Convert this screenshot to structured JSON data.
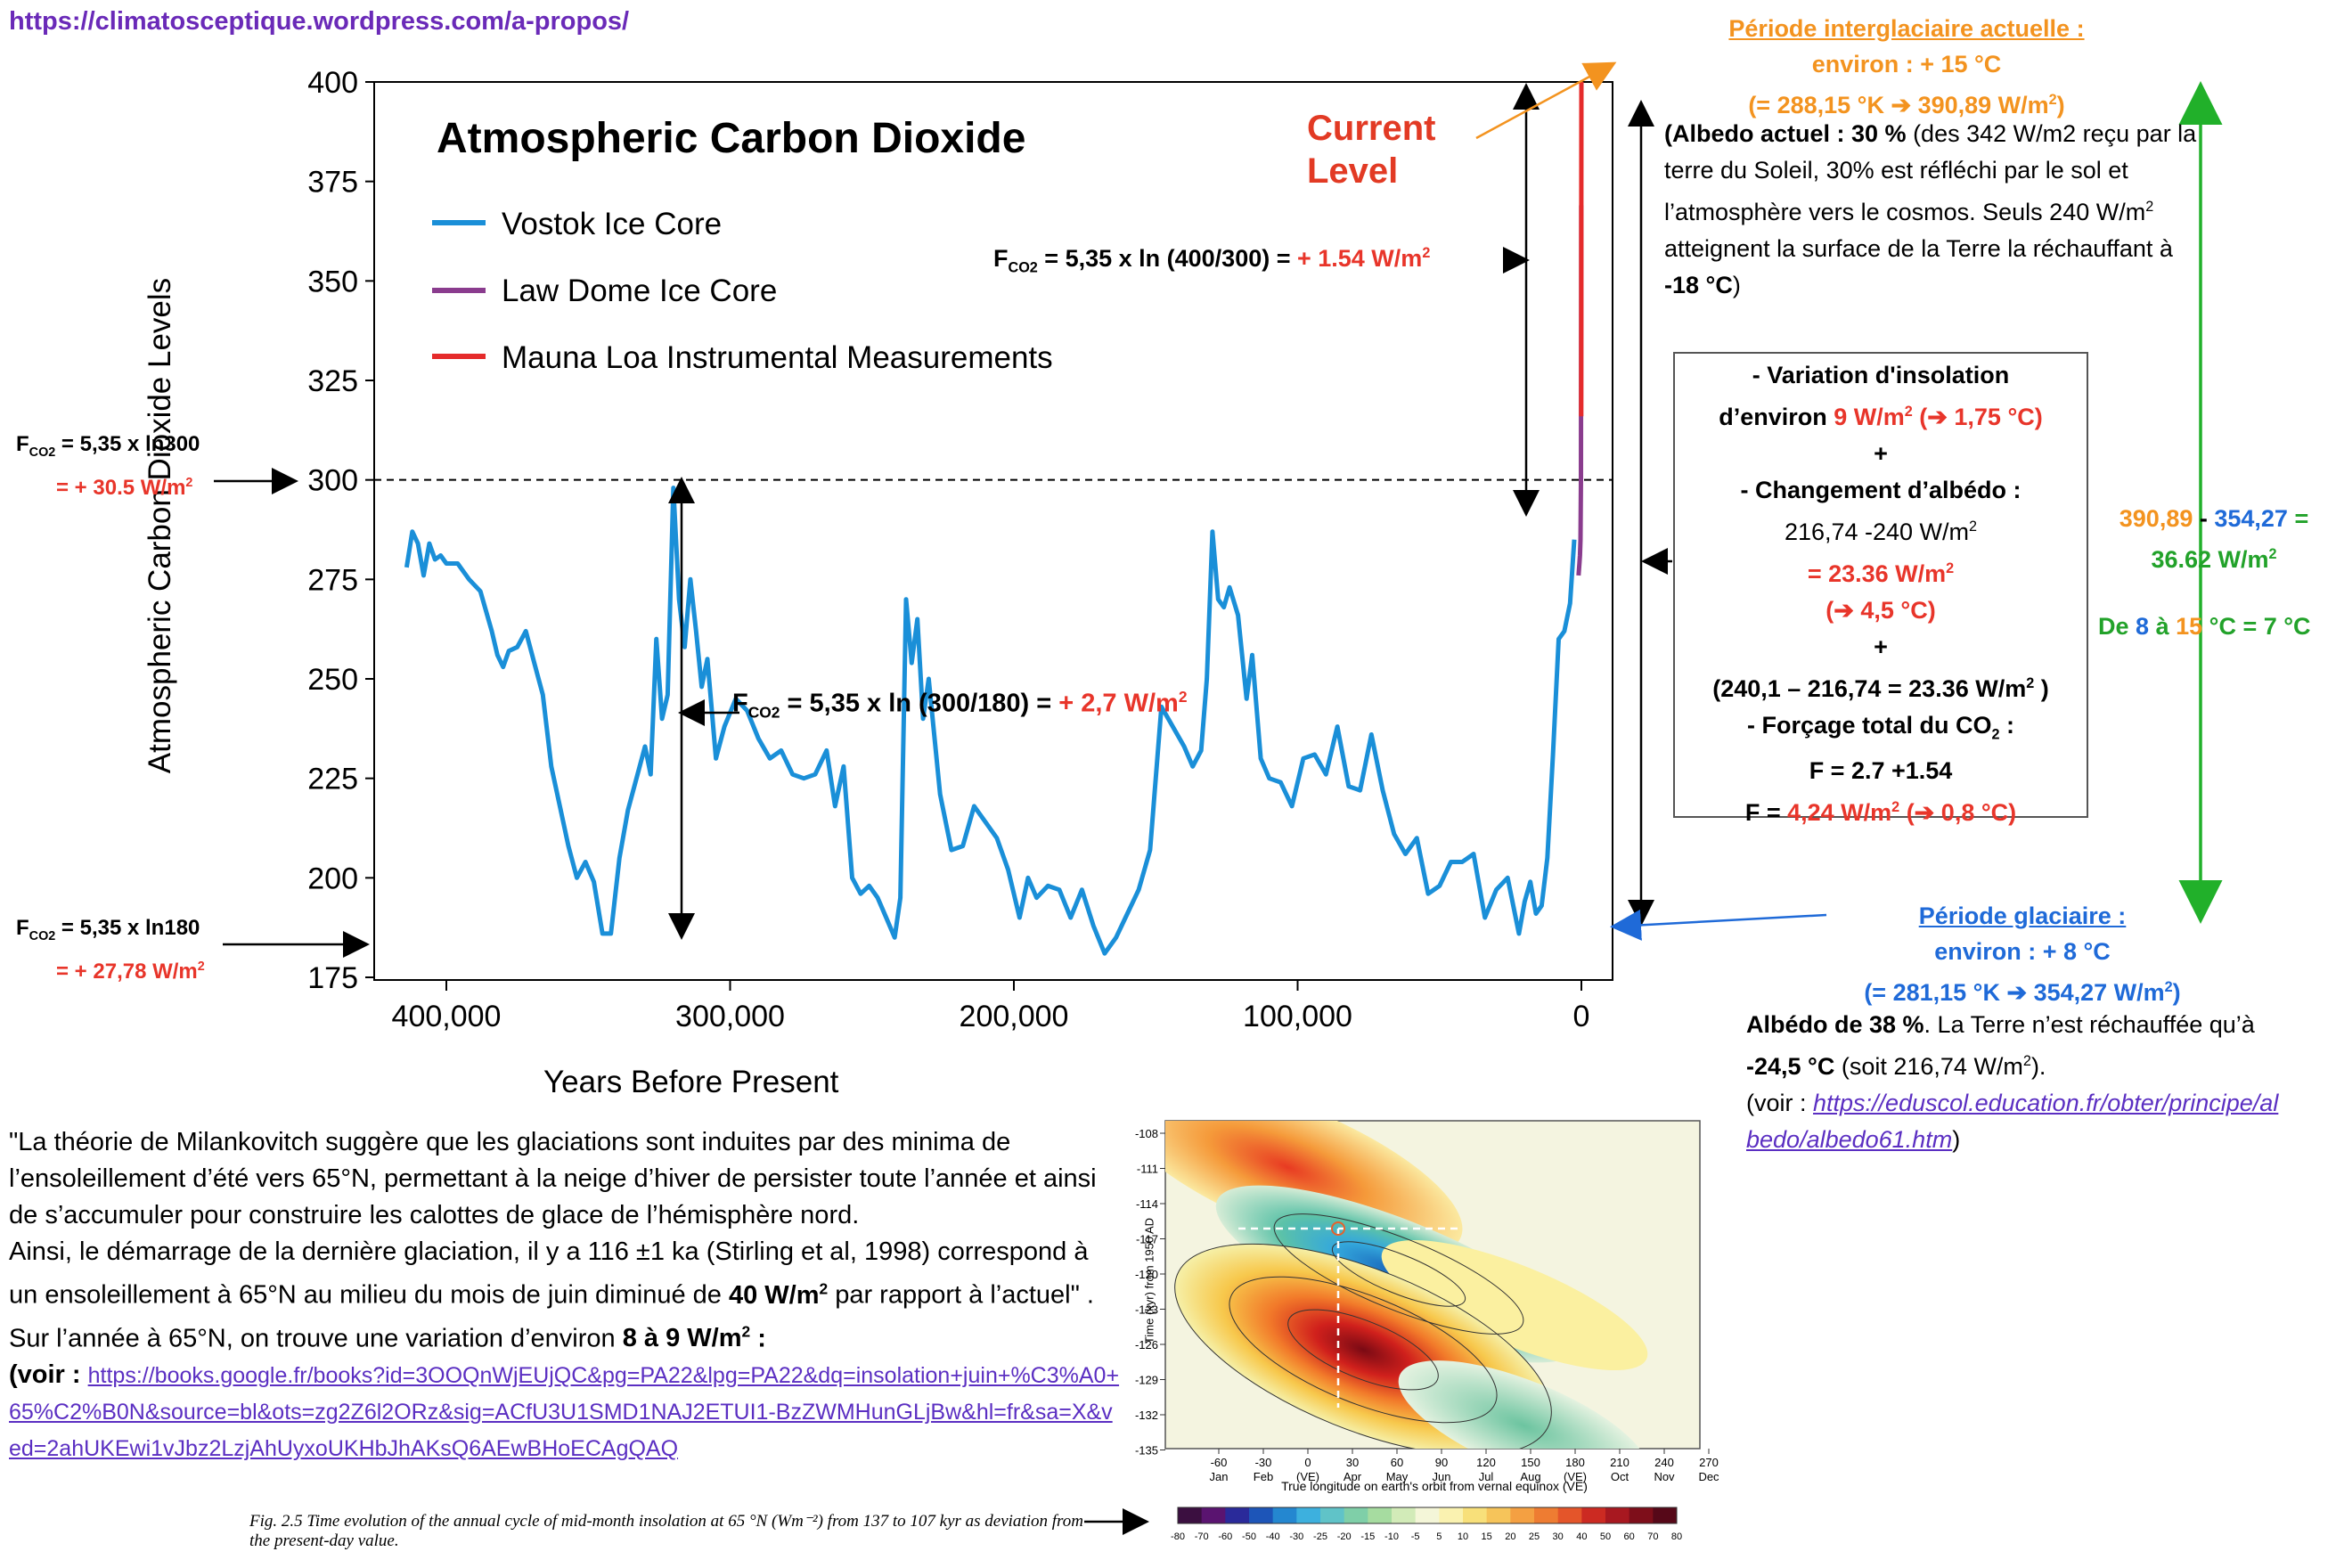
{
  "source_link": "https://climatosceptique.wordpress.com/a-propos/",
  "chart_data": {
    "type": "line",
    "title": "Atmospheric Carbon Dioxide",
    "xlabel": "Years Before Present",
    "ylabel": "Atmospheric Carbon Dioxide Levels",
    "xlim": [
      420000,
      -5000
    ],
    "ylim": [
      175,
      400
    ],
    "x_ticks": [
      "400,000",
      "300,000",
      "200,000",
      "100,000",
      "0"
    ],
    "y_ticks": [
      "175",
      "200",
      "225",
      "250",
      "275",
      "300",
      "325",
      "350",
      "375",
      "400"
    ],
    "reference_line": 300,
    "legend_position": "top-left",
    "series": [
      {
        "name": "Vostok Ice Core",
        "color": "#1a8fd8",
        "x": [
          414000,
          412000,
          410000,
          408000,
          406000,
          404000,
          402000,
          400000,
          396000,
          392000,
          388000,
          384000,
          382000,
          380000,
          378000,
          375000,
          372000,
          369000,
          366000,
          363000,
          360000,
          357000,
          354000,
          351000,
          348000,
          345000,
          342000,
          339000,
          336000,
          333000,
          330000,
          328000,
          326000,
          324000,
          322000,
          320000,
          318000,
          316000,
          314000,
          312000,
          310000,
          308000,
          305000,
          302000,
          298000,
          294000,
          290000,
          286000,
          282000,
          278000,
          274000,
          270000,
          266000,
          263000,
          260000,
          257000,
          254000,
          251000,
          248000,
          245000,
          242000,
          240000,
          238000,
          236000,
          234000,
          232000,
          230000,
          226000,
          222000,
          218000,
          214000,
          210000,
          206000,
          202000,
          198000,
          195000,
          192000,
          188000,
          184000,
          180000,
          176000,
          172000,
          168000,
          164000,
          160000,
          156000,
          152000,
          148000,
          144000,
          140000,
          137000,
          134000,
          132000,
          130000,
          128000,
          126000,
          124000,
          121000,
          118000,
          116000,
          113000,
          110000,
          106000,
          102000,
          98000,
          94000,
          90000,
          86000,
          82000,
          78000,
          74000,
          70000,
          66000,
          62000,
          58000,
          54000,
          50000,
          46000,
          42000,
          38000,
          34000,
          30000,
          26000,
          22000,
          20000,
          18000,
          16000,
          14000,
          12000,
          10000,
          8000,
          6000,
          4000,
          2500
        ],
        "y": [
          278,
          287,
          284,
          276,
          284,
          280,
          281,
          279,
          279,
          275,
          272,
          262,
          256,
          253,
          257,
          258,
          262,
          254,
          246,
          228,
          218,
          208,
          200,
          204,
          199,
          186,
          186,
          205,
          217,
          225,
          233,
          226,
          260,
          240,
          246,
          298,
          270,
          258,
          275,
          262,
          248,
          255,
          230,
          238,
          245,
          242,
          235,
          230,
          232,
          226,
          225,
          226,
          232,
          218,
          228,
          200,
          196,
          198,
          195,
          190,
          185,
          195,
          270,
          254,
          265,
          240,
          250,
          221,
          207,
          208,
          218,
          214,
          210,
          202,
          190,
          200,
          195,
          198,
          197,
          190,
          197,
          188,
          181,
          185,
          191,
          197,
          207,
          243,
          238,
          233,
          228,
          232,
          250,
          287,
          270,
          268,
          273,
          266,
          245,
          256,
          230,
          225,
          224,
          218,
          230,
          231,
          226,
          238,
          223,
          222,
          236,
          222,
          211,
          206,
          210,
          196,
          198,
          204,
          204,
          206,
          190,
          197,
          200,
          186,
          194,
          199,
          191,
          193,
          205,
          231,
          260,
          262,
          269,
          285
        ]
      },
      {
        "name": "Law Dome Ice Core",
        "color": "#8a3c8e",
        "x": [
          1000,
          700,
          500,
          300,
          150,
          60
        ],
        "y": [
          276,
          279,
          281,
          285,
          300,
          369
        ]
      },
      {
        "name": "Mauna Loa Instrumental Measurements",
        "color": "#e52b2b",
        "x": [
          60,
          40,
          20,
          0
        ],
        "y": [
          316,
          340,
          370,
          400
        ]
      }
    ],
    "annotation": "Current Level"
  },
  "annotations": {
    "fco2_label": "F",
    "co2_sub": "CO2",
    "fco2_400_300_formula": " = 5,35 x ln (400/300) = ",
    "fco2_400_300_value": "+ 1.54 W/m",
    "fco2_300_180_formula": " = 5,35 x ln (300/180) = ",
    "fco2_300_180_value": "+ 2,7 W/m",
    "left_300_formula": " = 5,35 x ln300",
    "left_300_value": "= + 30.5 W/m",
    "left_180_formula": " = 5,35 x ln180",
    "left_180_value": "= + 27,78 W/m"
  },
  "interglacial": {
    "title": "Période interglaciaire actuelle :",
    "temp": "environ : +  15 °C",
    "conv": "(= 288,15 °K  ➔ 390,89 W/m",
    "albedo_b": "(Albedo actuel : 30 %",
    "albedo_rest": " (des 342 W/m2 reçu par la terre du Soleil, 30% est réfléchi par le sol et l’atmosphère vers le cosmos. Seuls 240 W/m",
    "albedo_rest2": " atteignent la surface de la Terre la réchauffant à ",
    "albedo_temp": "-18 °C",
    "albedo_close": ")"
  },
  "box": {
    "l1": "- Variation d'insolation",
    "l2a": "d’environ ",
    "l2b": "9 W/m",
    "l2c": "  (➔ 1,75 °C)",
    "plus": "+",
    "l3": "- Changement d’albédo :",
    "l4": "216,74 -240 W/m",
    "l5": "= 23.36 W/m",
    "l6": "(➔ 4,5 °C)",
    "l7": "(240,1 – 216,74 = 23.36 W/m",
    "l7b": " )",
    "l8": "- Forçage total du CO",
    "l8b": " :",
    "l9": "F = 2.7 +1.54",
    "l10a": "F = ",
    "l10b": "4,24 W/m",
    "l10c": " (➔ 0,8 °C)"
  },
  "right": {
    "eq_a": "390,89",
    "eq_minus": " - ",
    "eq_b": "354,27",
    "eq_eq": "  =",
    "eq_result": "36.62 W/m",
    "de": "De ",
    "de8": "8",
    "a": " à ",
    "de15": "15",
    "de_rest": " °C = 7 °C"
  },
  "glacial": {
    "title": "Période glaciaire :",
    "temp": "environ : + 8  °C",
    "conv": "(= 281,15 °K ➔ 354,27 W/m",
    "albedo_b": "Albédo de 38 %",
    "albedo_rest": ". La Terre n’est réchauffée qu’à ",
    "albedo_temp": "-24,5 °C",
    "albedo_rest2": " (soit 216,74 W/m",
    "albedo_close": ").",
    "voir": "(voir : ",
    "link": "https://eduscol.education.fr/obter/principe/albedo/albedo61.htm",
    "link_close": ")"
  },
  "quote": {
    "text1": "\"La théorie de Milankovitch suggère que les glaciations sont induites par des minima de l’ensoleillement d’été vers 65°N, permettant à la neige d’hiver de persister toute l’année et ainsi de s’accumuler pour construire les calottes de glace de l’hémisphère nord.",
    "text2": "Ainsi, le démarrage de la dernière glaciation, il y a 116 ±1 ka (Stirling et al, 1998) correspond à un ensoleillement à 65°N au milieu du mois de juin diminué de ",
    "bold1": "40 W/m",
    "text3": " par rapport à l’actuel\" . Sur l’année à 65°N, on trouve une variation d’environ ",
    "bold2": "8 à 9 W/m",
    "text4": " :",
    "voir": "(voir : ",
    "link": "https://books.google.fr/books?id=3OOQnWjEUjQC&pg=PA22&lpg=PA22&dq=insolation+juin+%C3%A0+65%C2%B0N&source=bl&ots=zg2Z6l2ORz&sig=ACfU3U1SMD1NAJ2ETUI1-BzZWMHunGLjBw&hl=fr&sa=X&ved=2ahUKEwi1vJbz2LzjAhUyxoUKHbJhAKsQ6AEwBHoECAgQAQ"
  },
  "inset": {
    "ylabel": "Time (kyr) from 1950 AD",
    "xlabel": "True longitude on earth's orbit from vernal equinox (VE)",
    "y_ticks": [
      "-108",
      "-111",
      "-114",
      "-117",
      "-120",
      "-123",
      "-126",
      "-129",
      "-132",
      "-135"
    ],
    "x_ticks": [
      "-60",
      "-30",
      "0",
      "30",
      "60",
      "90",
      "120",
      "150",
      "180",
      "210",
      "240",
      "270"
    ],
    "months": [
      "Jan",
      "Feb",
      "(VE)",
      "Apr",
      "May",
      "Jun",
      "Jul",
      "Aug",
      "(VE)",
      "Oct",
      "Nov",
      "Dec"
    ],
    "colorbar": [
      "-80",
      "-70",
      "-60",
      "-50",
      "-40",
      "-30",
      "-25",
      "-20",
      "-15",
      "-10",
      "-5",
      "5",
      "10",
      "15",
      "20",
      "25",
      "30",
      "40",
      "50",
      "60",
      "70",
      "80"
    ],
    "caption": "Fig. 2.5  Time evolution of the annual cycle of mid-month insolation at 65 °N (Wm⁻²) from 137 to 107 kyr as deviation from the present-day value."
  }
}
